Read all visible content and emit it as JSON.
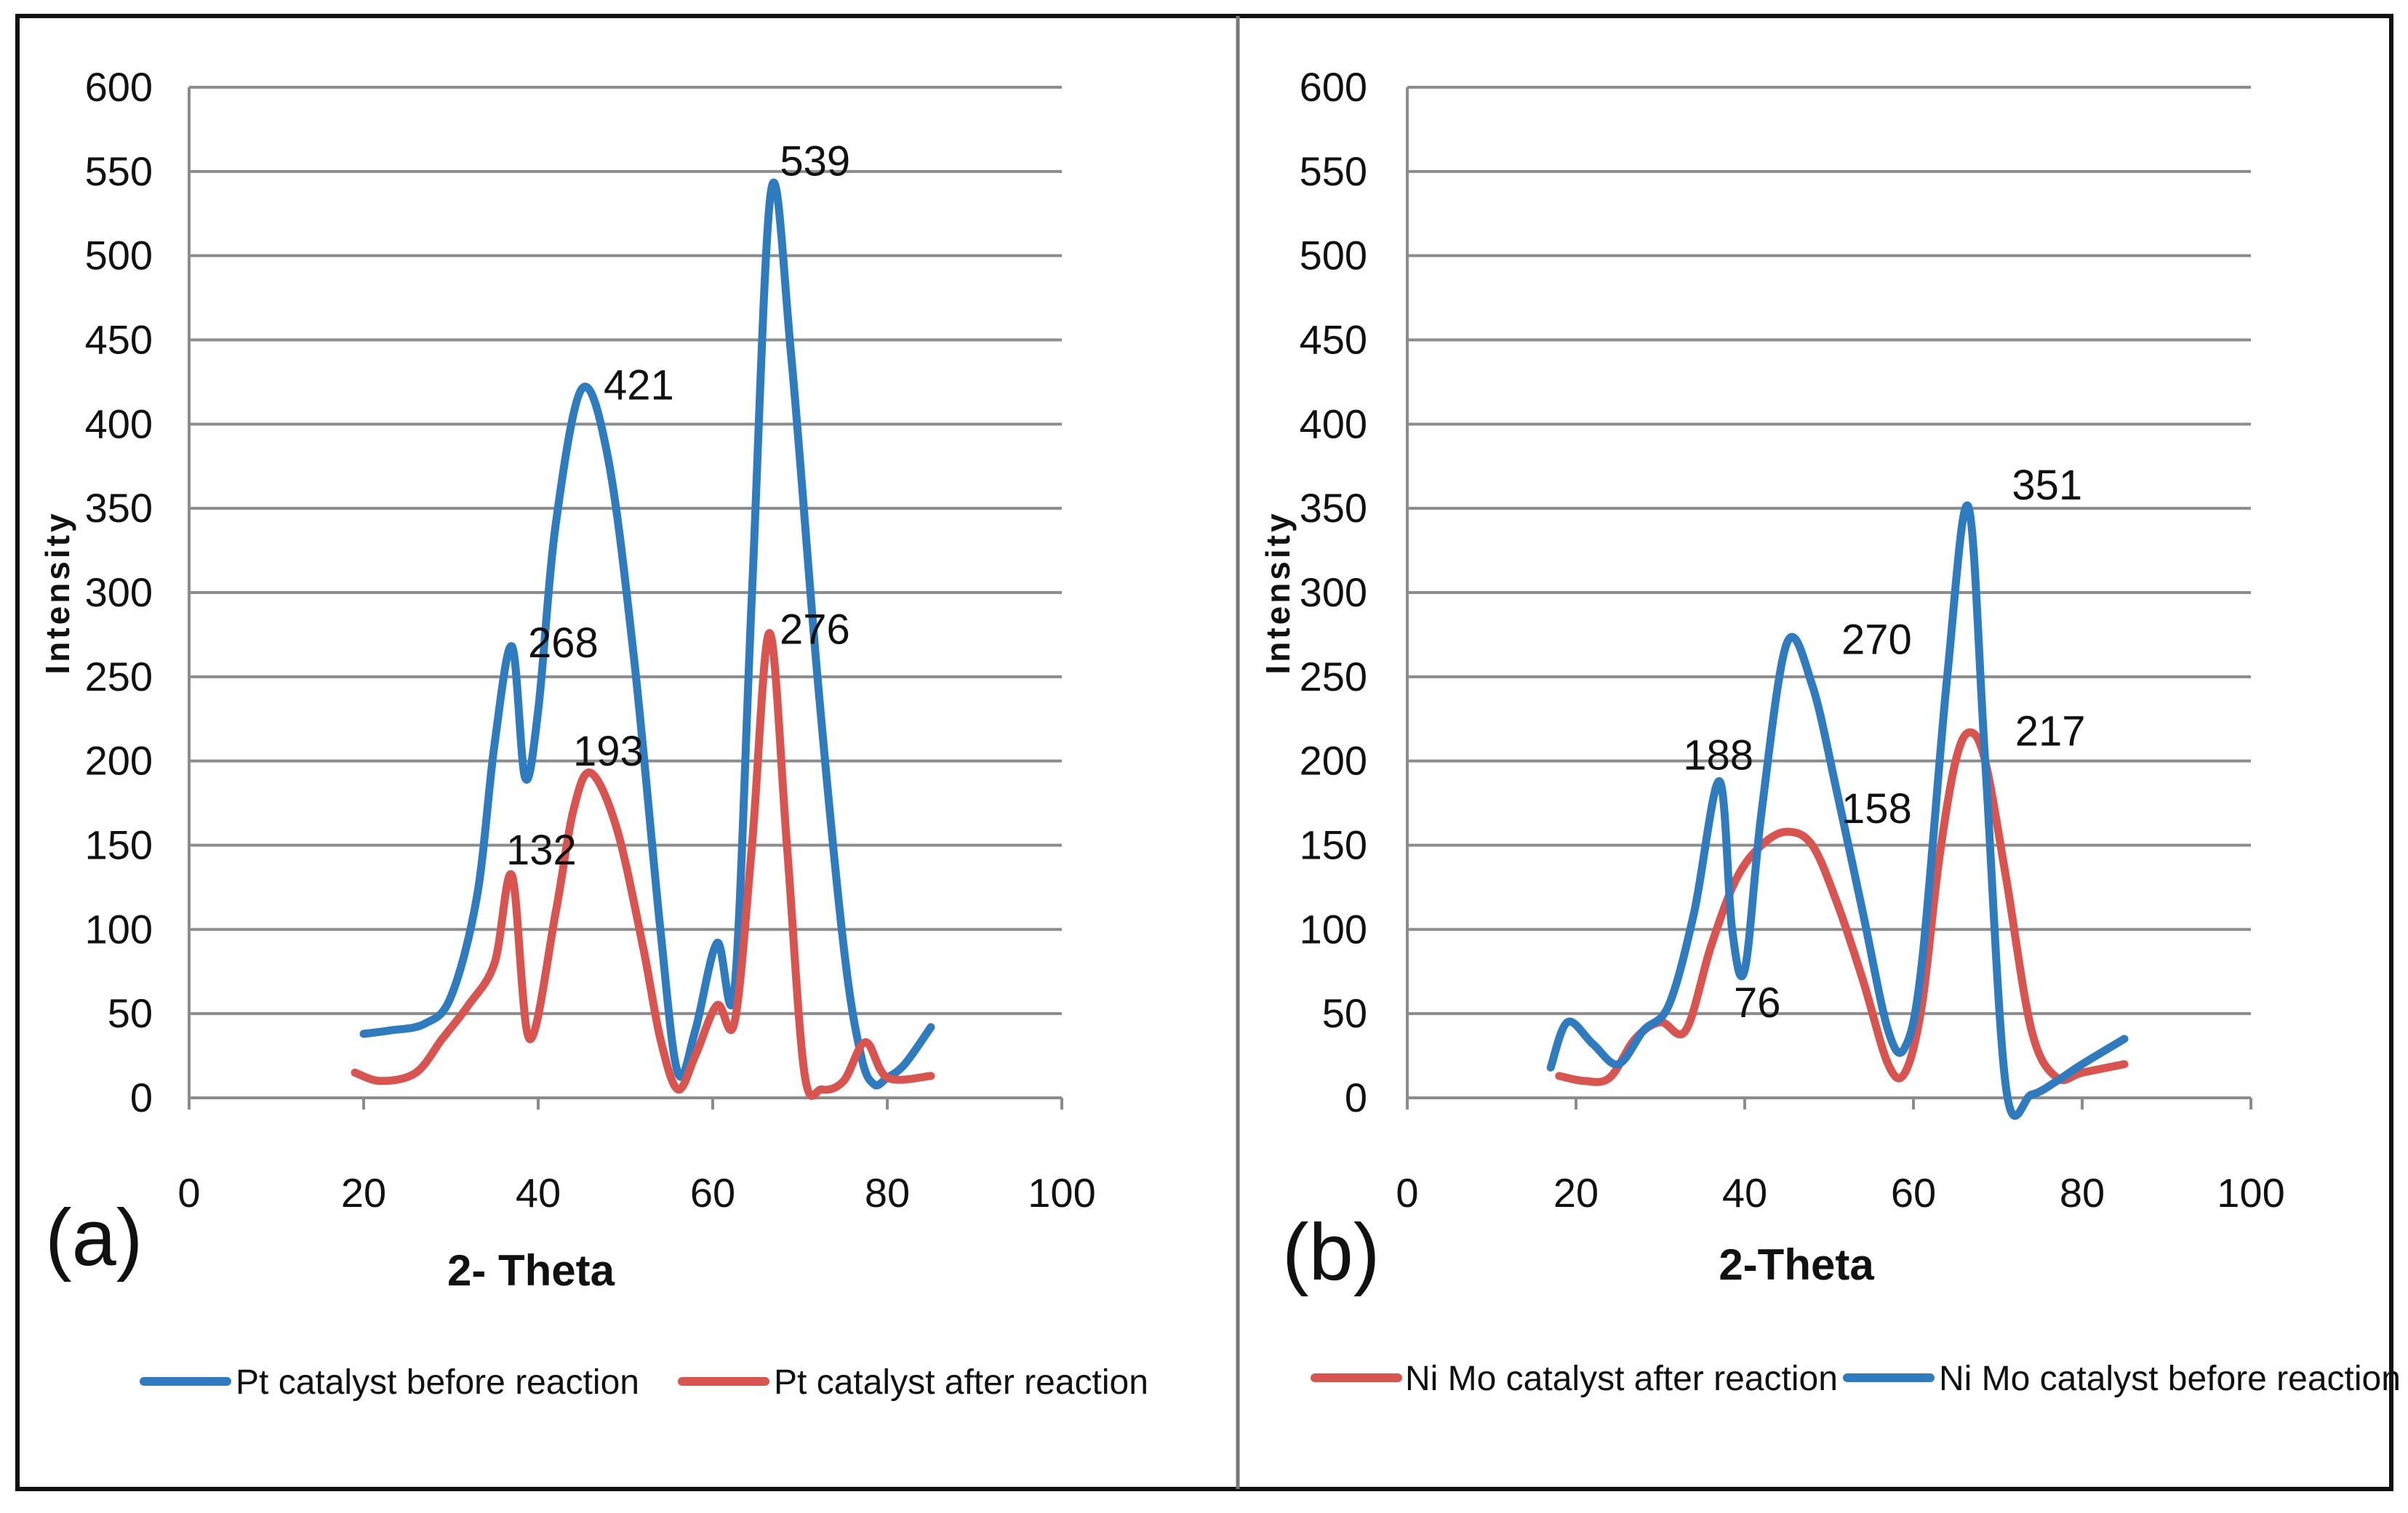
{
  "chart_data": [
    {
      "type": "line",
      "panel_label": "(a)",
      "xlabel": "2- Theta",
      "ylabel": "Intensity",
      "xlim": [
        0,
        100
      ],
      "ylim": [
        0,
        600
      ],
      "xticks": [
        0,
        20,
        40,
        60,
        80,
        100
      ],
      "yticks": [
        0,
        50,
        100,
        150,
        200,
        250,
        300,
        350,
        400,
        450,
        500,
        550,
        600
      ],
      "grid": "horizontal",
      "legend_position": "bottom",
      "series": [
        {
          "name": "Pt catalyst before reaction",
          "color": "#2e7bbf",
          "x": [
            20,
            23,
            27,
            30,
            33,
            35,
            37,
            38.5,
            40,
            42,
            45,
            48,
            51,
            54,
            56,
            58,
            60.5,
            62.5,
            64.5,
            66.7,
            69,
            72,
            75,
            77,
            78.5,
            80,
            82,
            85
          ],
          "y": [
            38,
            40,
            44,
            60,
            120,
            210,
            268,
            190,
            230,
            340,
            421,
            380,
            260,
            100,
            15,
            40,
            92,
            65,
            300,
            539,
            440,
            250,
            90,
            25,
            8,
            12,
            20,
            42
          ]
        },
        {
          "name": "Pt catalyst after reaction",
          "color": "#d9534f",
          "x": [
            19,
            22,
            26,
            29,
            32,
            35,
            37,
            39,
            42,
            44,
            46,
            49,
            52,
            54,
            56,
            58,
            60.5,
            62.5,
            64.5,
            66.5,
            68.5,
            70.5,
            72.5,
            75,
            77.5,
            80,
            85
          ],
          "y": [
            15,
            10,
            15,
            35,
            55,
            80,
            132,
            35,
            110,
            170,
            193,
            160,
            90,
            35,
            5,
            25,
            55,
            45,
            150,
            276,
            150,
            15,
            5,
            10,
            33,
            12,
            13
          ]
        }
      ],
      "annotations": [
        {
          "text": "539",
          "x": 66.7,
          "y": 539
        },
        {
          "text": "421",
          "x": 45,
          "y": 421
        },
        {
          "text": "276",
          "x": 66.5,
          "y": 276
        },
        {
          "text": "268",
          "x": 37,
          "y": 268
        },
        {
          "text": "193",
          "x": 46,
          "y": 193
        },
        {
          "text": "132",
          "x": 37,
          "y": 132
        }
      ]
    },
    {
      "type": "line",
      "panel_label": "(b)",
      "xlabel": "2-Theta",
      "ylabel": "Intensity",
      "xlim": [
        0,
        100
      ],
      "ylim": [
        0,
        600
      ],
      "xticks": [
        0,
        20,
        40,
        60,
        80,
        100
      ],
      "yticks": [
        0,
        50,
        100,
        150,
        200,
        250,
        300,
        350,
        400,
        450,
        500,
        550,
        600
      ],
      "grid": "horizontal",
      "legend_position": "bottom",
      "series": [
        {
          "name": "Ni Mo catalyst after reaction",
          "color": "#d9534f",
          "x": [
            18,
            21,
            24,
            27,
            30,
            33,
            36,
            39,
            42,
            45,
            48,
            51,
            54,
            57,
            59,
            61,
            63,
            65,
            66.7,
            68.5,
            71,
            74,
            77,
            80,
            85
          ],
          "y": [
            13,
            10,
            12,
            35,
            45,
            40,
            90,
            130,
            150,
            158,
            150,
            115,
            70,
            20,
            15,
            55,
            140,
            200,
            217,
            200,
            130,
            40,
            12,
            15,
            20
          ]
        },
        {
          "name": "Ni Mo catalyst before reaction",
          "color": "#2e7bbf",
          "x": [
            17,
            19,
            22,
            25,
            28,
            31,
            34,
            37,
            38.5,
            40,
            42,
            45,
            48,
            51,
            54,
            57,
            59,
            61,
            64,
            66.5,
            68.5,
            71,
            74,
            77,
            80,
            85
          ],
          "y": [
            18,
            45,
            32,
            20,
            40,
            55,
            110,
            188,
            100,
            76,
            170,
            270,
            245,
            180,
            110,
            40,
            30,
            80,
            250,
            351,
            200,
            5,
            2,
            10,
            20,
            35
          ]
        }
      ],
      "annotations": [
        {
          "text": "351",
          "x": 66.5,
          "y": 351
        },
        {
          "text": "270",
          "x": 45,
          "y": 270
        },
        {
          "text": "217",
          "x": 66.7,
          "y": 217
        },
        {
          "text": "188",
          "x": 37,
          "y": 188
        },
        {
          "text": "158",
          "x": 45,
          "y": 158
        },
        {
          "text": "76",
          "x": 40,
          "y": 76
        }
      ]
    }
  ],
  "colors": {
    "border": "#111111",
    "divider": "#777777",
    "grid": "#8c8c8c",
    "blue": "#2e7bbf",
    "red": "#d9534f"
  }
}
